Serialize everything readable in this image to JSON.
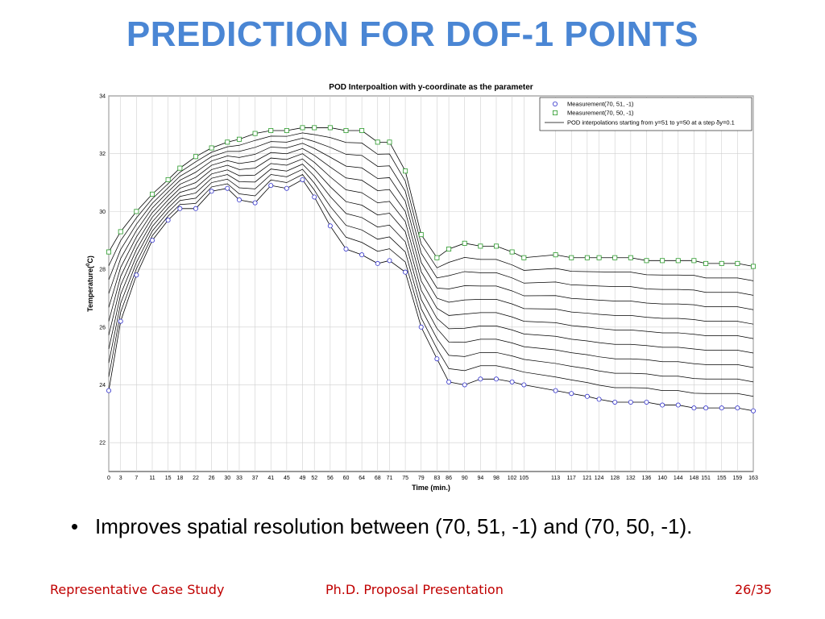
{
  "slide": {
    "title": "PREDICTION FOR DOF-1 POINTS",
    "bullet": "Improves spatial resolution between (70, 51, -1) and (70, 50, -1).",
    "footer_left": "Representative Case Study",
    "footer_center": "Ph.D. Proposal Presentation",
    "footer_right": "26/35"
  },
  "colors": {
    "title": "#4a86d4",
    "footer": "#c00000",
    "measurement_51": "#3333cc",
    "measurement_50": "#2a9a2a",
    "interpolation": "#000000"
  },
  "chart_data": {
    "type": "line",
    "title": "POD Interpoaltion with y-coordinate as the parameter",
    "xlabel": "Time (min.)",
    "ylabel": "Temperature(0C)",
    "ylabel_main": "Temperature(",
    "ylabel_sup": "0",
    "ylabel_end": "C)",
    "xlim": [
      0,
      163
    ],
    "ylim": [
      21,
      34
    ],
    "yticks": [
      22,
      24,
      26,
      28,
      30,
      32,
      34
    ],
    "xticks": [
      0,
      3,
      7,
      11,
      15,
      18,
      22,
      26,
      30,
      33,
      37,
      41,
      45,
      49,
      52,
      56,
      60,
      64,
      68,
      71,
      75,
      79,
      83,
      86,
      90,
      94,
      98,
      102,
      105,
      113,
      117,
      121,
      124,
      128,
      132,
      136,
      140,
      144,
      148,
      151,
      155,
      159,
      163
    ],
    "grid": true,
    "legend_position": "top-right",
    "interpolation_count": 9,
    "series": [
      {
        "name": "Measurement(70, 51, -1)",
        "marker": "circle",
        "x": [
          0,
          3,
          7,
          11,
          15,
          18,
          22,
          26,
          30,
          33,
          37,
          41,
          45,
          49,
          52,
          56,
          60,
          64,
          68,
          71,
          75,
          79,
          83,
          86,
          90,
          94,
          98,
          102,
          105,
          113,
          117,
          121,
          124,
          128,
          132,
          136,
          140,
          144,
          148,
          151,
          155,
          159,
          163
        ],
        "y": [
          23.8,
          26.2,
          27.8,
          29.0,
          29.7,
          30.1,
          30.1,
          30.7,
          30.8,
          30.4,
          30.3,
          30.9,
          30.8,
          31.1,
          30.5,
          29.5,
          28.7,
          28.5,
          28.2,
          28.3,
          27.9,
          26.0,
          24.9,
          24.1,
          24.0,
          24.2,
          24.2,
          24.1,
          24.0,
          23.8,
          23.7,
          23.6,
          23.5,
          23.4,
          23.4,
          23.4,
          23.3,
          23.3,
          23.2,
          23.2,
          23.2,
          23.2,
          23.1
        ]
      },
      {
        "name": "Measurement(70, 50, -1)",
        "marker": "square",
        "x": [
          0,
          3,
          7,
          11,
          15,
          18,
          22,
          26,
          30,
          33,
          37,
          41,
          45,
          49,
          52,
          56,
          60,
          64,
          68,
          71,
          75,
          79,
          83,
          86,
          90,
          94,
          98,
          102,
          105,
          113,
          117,
          121,
          124,
          128,
          132,
          136,
          140,
          144,
          148,
          151,
          155,
          159,
          163
        ],
        "y": [
          28.6,
          29.3,
          30.0,
          30.6,
          31.1,
          31.5,
          31.9,
          32.2,
          32.4,
          32.5,
          32.7,
          32.8,
          32.8,
          32.9,
          32.9,
          32.9,
          32.8,
          32.8,
          32.4,
          32.4,
          31.4,
          29.2,
          28.4,
          28.7,
          28.9,
          28.8,
          28.8,
          28.6,
          28.4,
          28.5,
          28.4,
          28.4,
          28.4,
          28.4,
          28.4,
          28.3,
          28.3,
          28.3,
          28.3,
          28.2,
          28.2,
          28.2,
          28.1
        ]
      },
      {
        "name": "POD interpolations starting from y=51 to y=50 at a step δy=0.1",
        "marker": "none"
      }
    ]
  }
}
